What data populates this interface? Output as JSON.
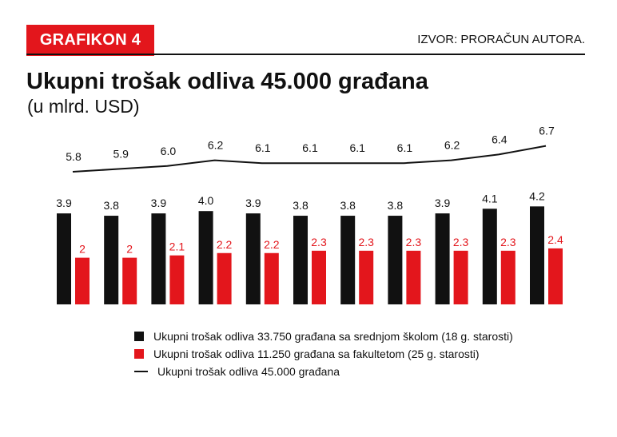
{
  "header": {
    "badge": "GRAFIKON 4",
    "source": "IZVOR: PRORAČUN AUTORA."
  },
  "title": "Ukupni trošak odliva 45.000 građana",
  "subtitle": "(u mlrd. USD)",
  "colors": {
    "accent": "#e3161c",
    "dark": "#111111"
  },
  "chart_data": {
    "type": "bar",
    "categories": [
      "",
      "",
      "",
      "",
      "",
      "",
      "",
      "",
      "",
      "",
      ""
    ],
    "series": [
      {
        "name": "Ukupni trošak odliva 33.750 građana sa srednjom školom (18 g. starosti)",
        "type": "bar",
        "color": "#111111",
        "values": [
          3.9,
          3.8,
          3.9,
          4.0,
          3.9,
          3.8,
          3.8,
          3.8,
          3.9,
          4.1,
          4.2
        ],
        "labels": [
          "3.9",
          "3.8",
          "3.9",
          "4.0",
          "3.9",
          "3.8",
          "3.8",
          "3.8",
          "3.9",
          "4.1",
          "4.2"
        ]
      },
      {
        "name": "Ukupni trošak odliva 11.250 građana sa fakultetom (25 g. starosti)",
        "type": "bar",
        "color": "#e3161c",
        "values": [
          2,
          2,
          2.1,
          2.2,
          2.2,
          2.3,
          2.3,
          2.3,
          2.3,
          2.3,
          2.4
        ],
        "labels": [
          "2",
          "2",
          "2.1",
          "2.2",
          "2.2",
          "2.3",
          "2.3",
          "2.3",
          "2.3",
          "2.3",
          "2.4"
        ]
      },
      {
        "name": "Ukupni trošak odliva 45.000 građana",
        "type": "line",
        "color": "#111111",
        "values": [
          5.8,
          5.9,
          6.0,
          6.2,
          6.1,
          6.1,
          6.1,
          6.1,
          6.2,
          6.4,
          6.7
        ],
        "labels": [
          "5.8",
          "5.9",
          "6.0",
          "6.2",
          "6.1",
          "6.1",
          "6.1",
          "6.1",
          "6.2",
          "6.4",
          "6.7"
        ]
      }
    ],
    "ylim": [
      0,
      7
    ],
    "grid": false,
    "legend_position": "bottom"
  }
}
